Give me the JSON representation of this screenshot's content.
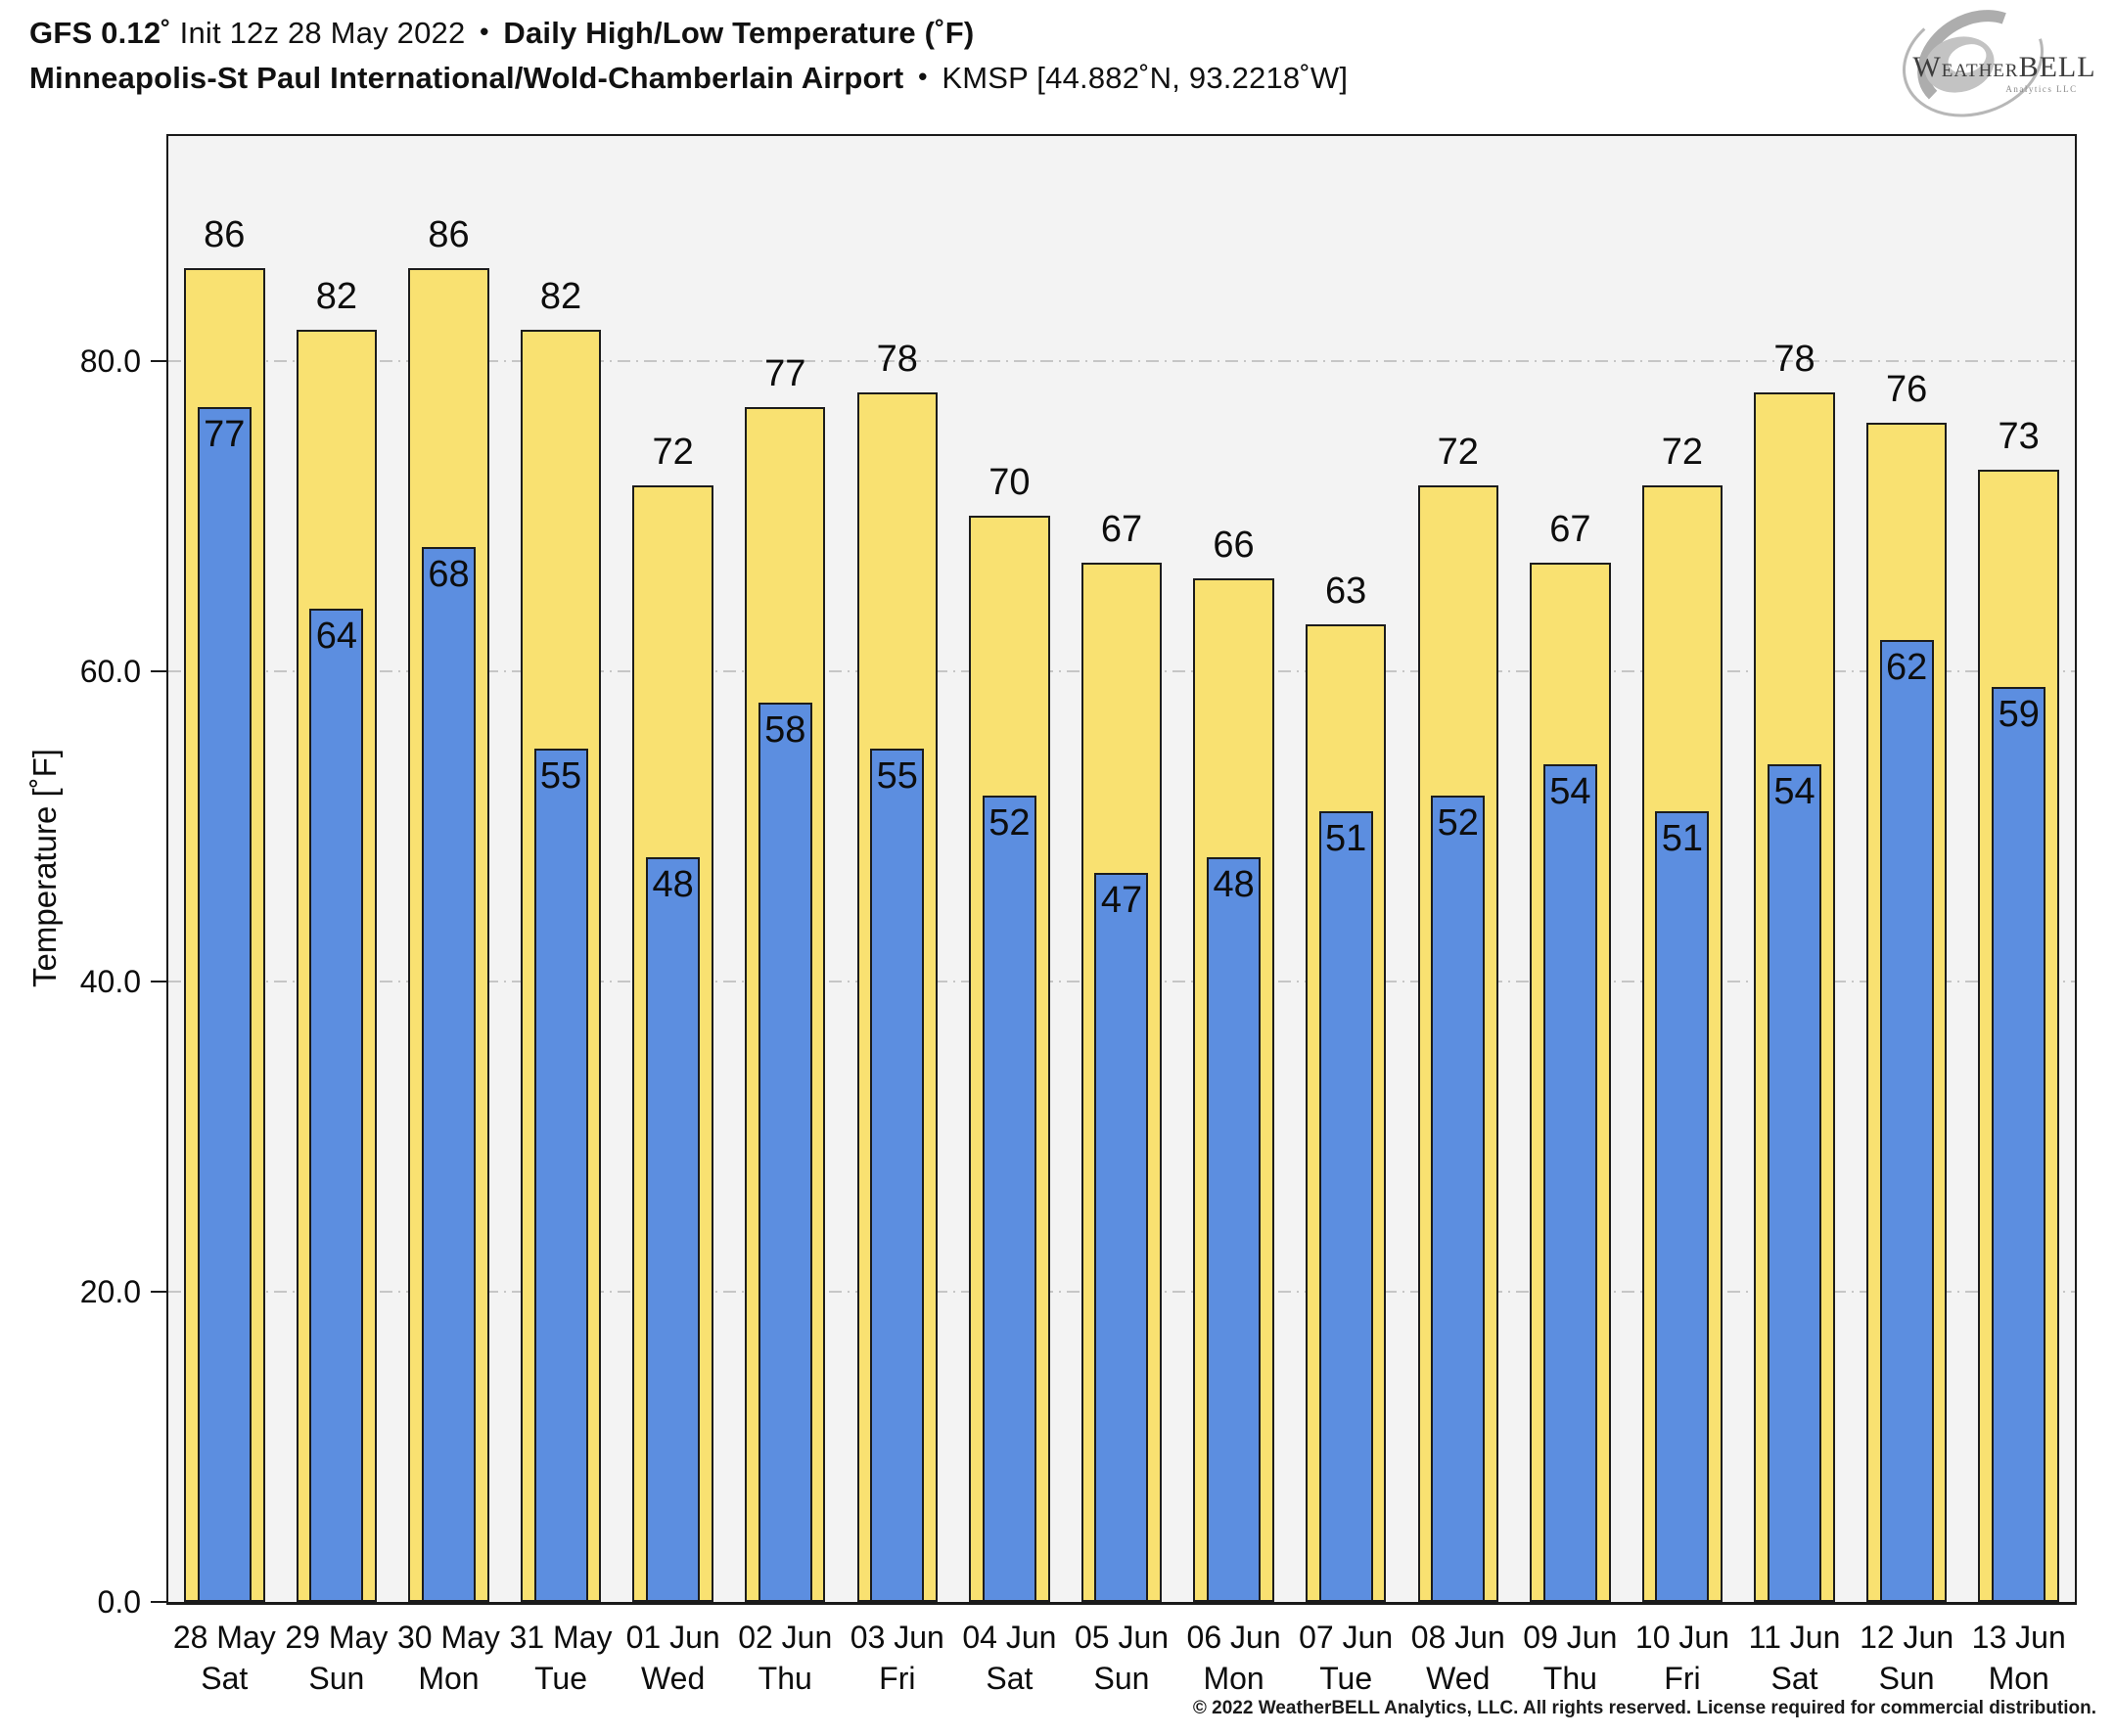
{
  "header": {
    "model": "GFS 0.12˚",
    "init": "Init 12z 28 May 2022",
    "sep": "•",
    "metric": "Daily High/Low Temperature (˚F)",
    "station": "Minneapolis-St Paul International/Wold-Chamberlain Airport",
    "station_id": "KMSP [44.882˚N, 93.2218˚W]"
  },
  "logo": {
    "initial": "W",
    "rest": "EATHER",
    "bell": "BELL",
    "sub": "Analytics LLC"
  },
  "chart_data": {
    "type": "bar",
    "title": "Daily High/Low Temperature (˚F)",
    "subtitle": "Minneapolis-St Paul International/Wold-Chamberlain Airport ˙ KMSP [44.882˚N, 93.2218˚W]",
    "xlabel": "",
    "ylabel": "Temperature [˚F]",
    "ylim": [
      0,
      94.5
    ],
    "yticks": [
      0,
      20,
      40,
      60,
      80
    ],
    "grid": true,
    "grid_style": "dash-dot horizontal",
    "legend_position": "none",
    "plot_bg": "#f3f3f3",
    "categories": [
      "28 May",
      "29 May",
      "30 May",
      "31 May",
      "01 Jun",
      "02 Jun",
      "03 Jun",
      "04 Jun",
      "05 Jun",
      "06 Jun",
      "07 Jun",
      "08 Jun",
      "09 Jun",
      "10 Jun",
      "11 Jun",
      "12 Jun",
      "13 Jun"
    ],
    "weekdays": [
      "Sat",
      "Sun",
      "Mon",
      "Tue",
      "Wed",
      "Thu",
      "Fri",
      "Sat",
      "Sun",
      "Mon",
      "Tue",
      "Wed",
      "Thu",
      "Fri",
      "Sat",
      "Sun",
      "Mon"
    ],
    "series": [
      {
        "name": "High",
        "color": "#f9e171",
        "values": [
          86,
          82,
          86,
          82,
          72,
          77,
          78,
          70,
          67,
          66,
          63,
          72,
          67,
          72,
          78,
          76,
          73
        ]
      },
      {
        "name": "Low",
        "color": "#5c8ee0",
        "values": [
          77,
          64,
          68,
          55,
          48,
          58,
          55,
          52,
          47,
          48,
          51,
          52,
          54,
          51,
          54,
          62,
          59
        ]
      }
    ]
  },
  "footer": {
    "copyright": "© 2022 WeatherBELL Analytics, LLC. All rights reserved. License required for commercial distribution."
  },
  "colors": {
    "high_bar": "#f9e171",
    "low_bar": "#5c8ee0",
    "bar_border": "#1c1c1c",
    "grid": "#c6c6c6",
    "plot_bg": "#f3f3f3",
    "logo_gray": "#b3b3b3"
  }
}
